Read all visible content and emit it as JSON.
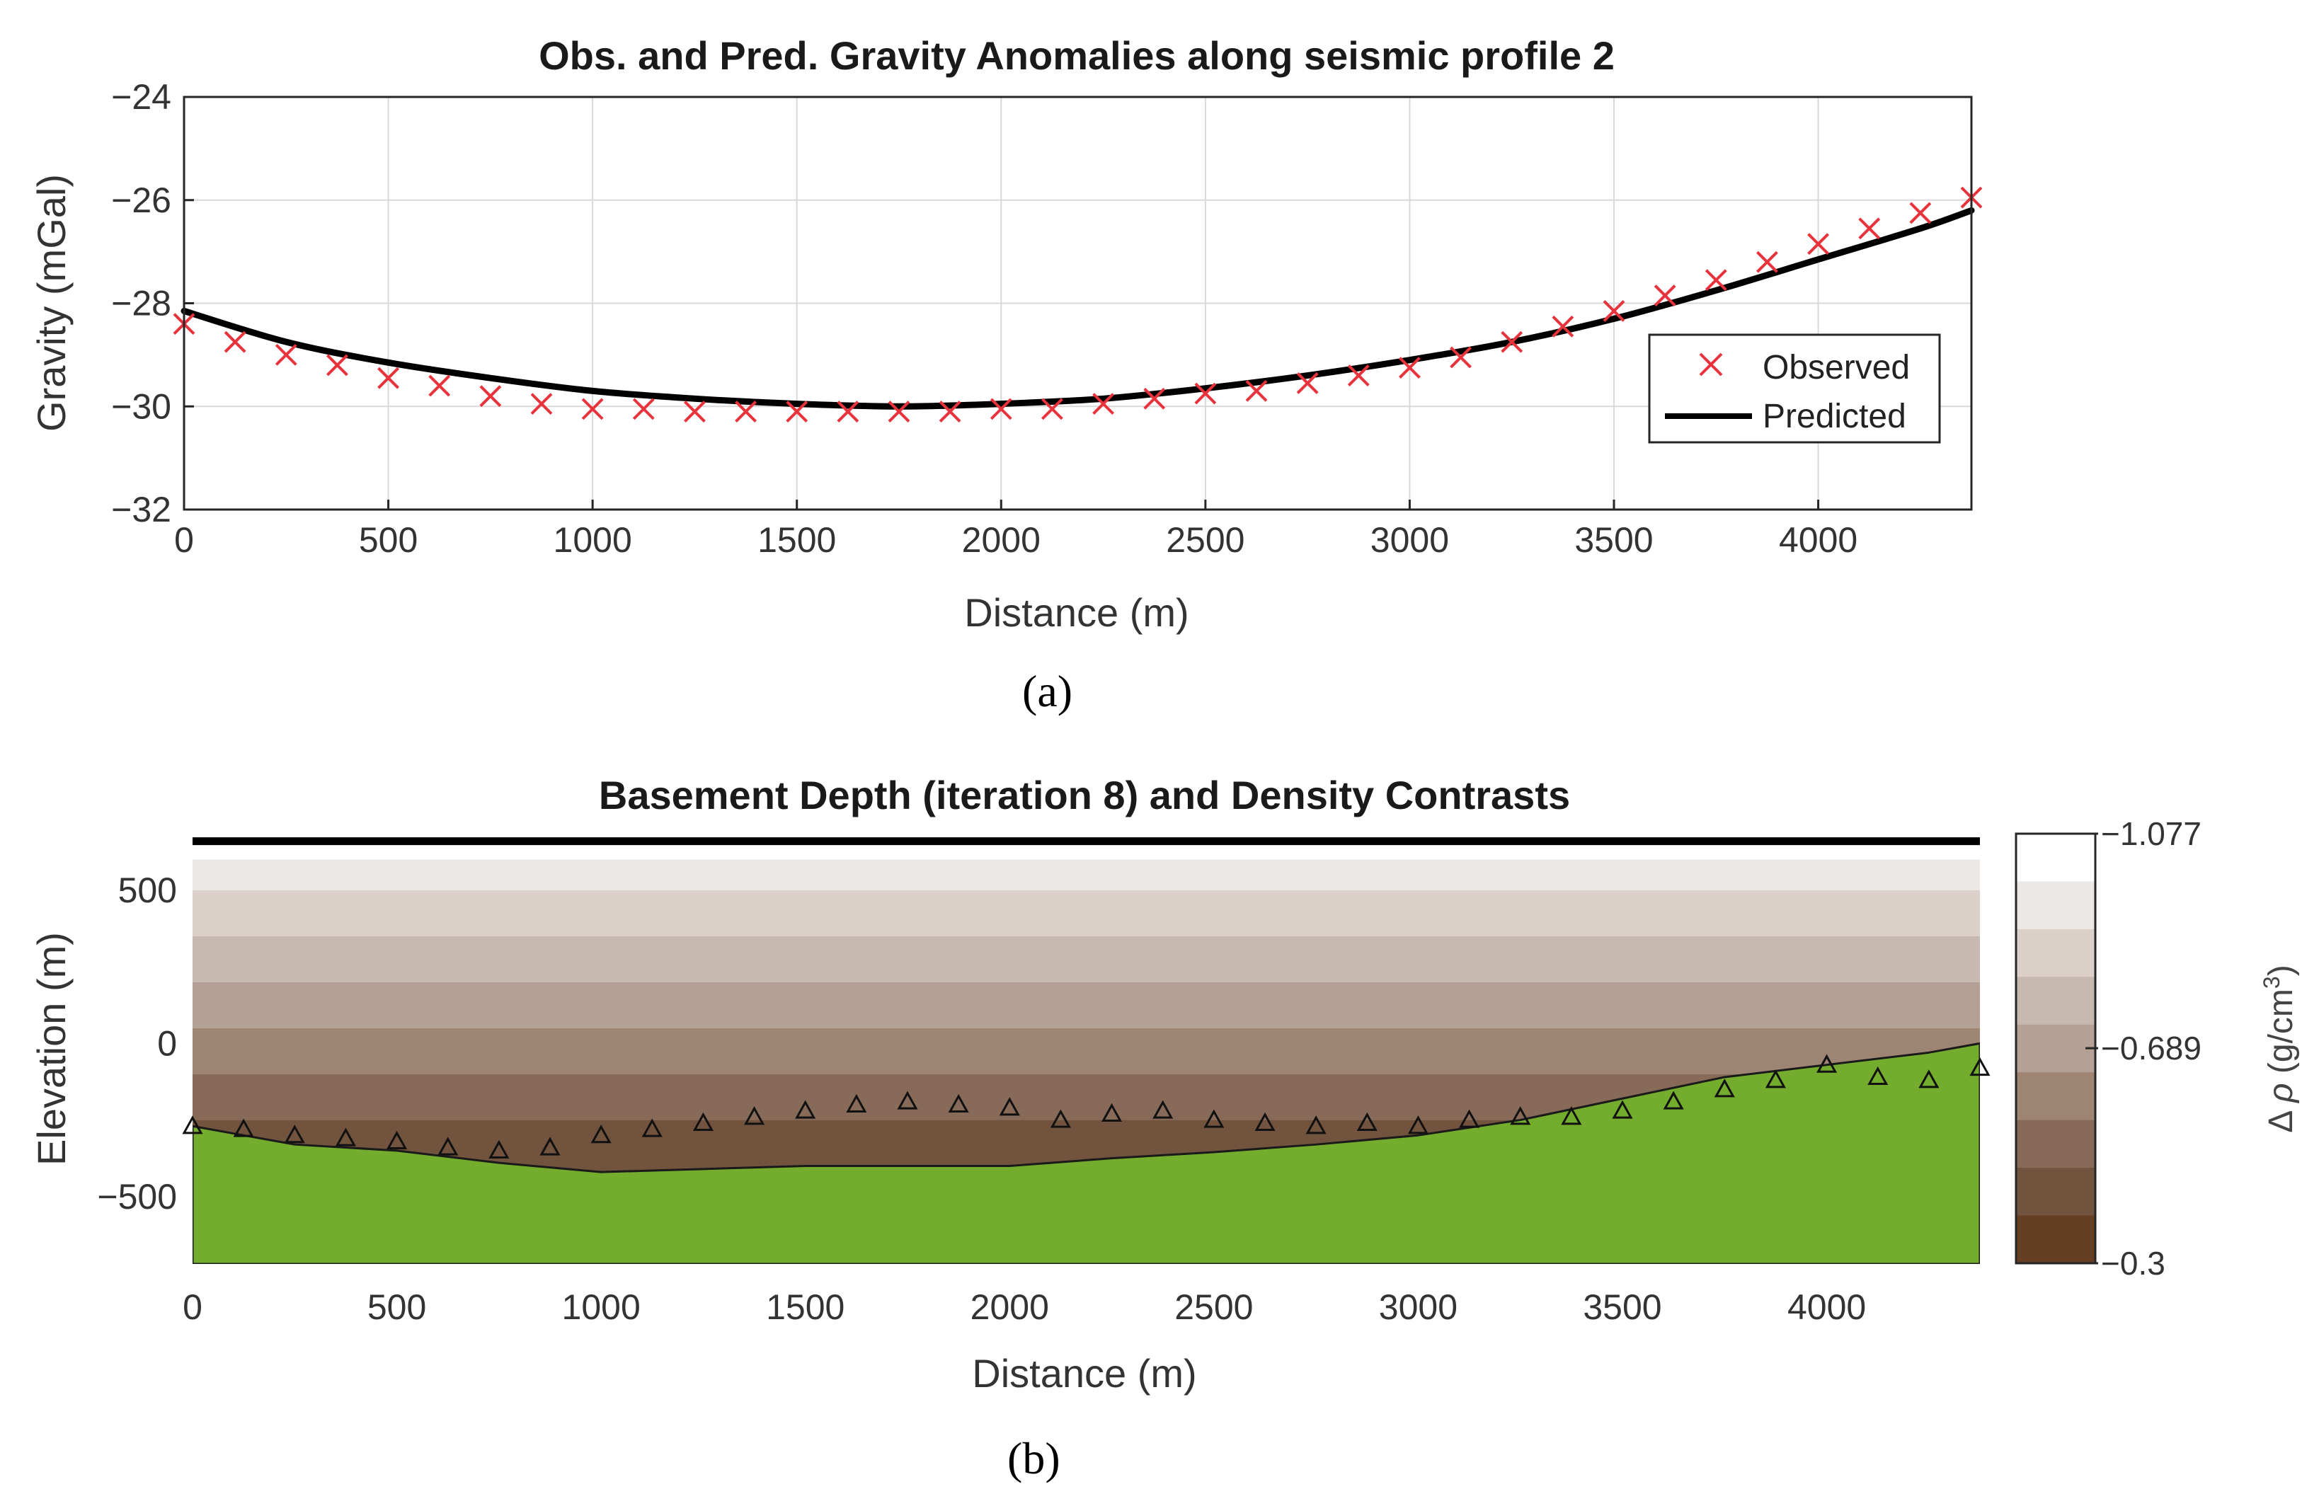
{
  "chart_data": [
    {
      "type": "line",
      "title": "Obs. and Pred. Gravity Anomalies along seismic profile 2",
      "xlabel": "Distance (m)",
      "ylabel": "Gravity (mGal)",
      "xlim": [
        0,
        4375
      ],
      "ylim": [
        -32,
        -24
      ],
      "x_ticks": [
        0,
        500,
        1000,
        1500,
        2000,
        2500,
        3000,
        3500,
        4000
      ],
      "x_tick_labels": [
        "0",
        "500",
        "1000",
        "1500",
        "2000",
        "2500",
        "3000",
        "3500",
        "4000"
      ],
      "y_ticks": [
        -24,
        -26,
        -28,
        -30,
        -32
      ],
      "y_tick_labels": [
        "−24",
        "−26",
        "−28",
        "−30",
        "−32"
      ],
      "grid": true,
      "legend_position": "bottom-right",
      "series": [
        {
          "name": "Observed",
          "marker": "x",
          "color": "#e8323c",
          "x": [
            0,
            125,
            250,
            375,
            500,
            625,
            750,
            875,
            1000,
            1125,
            1250,
            1375,
            1500,
            1625,
            1750,
            1875,
            2000,
            2125,
            2250,
            2375,
            2500,
            2625,
            2750,
            2875,
            3000,
            3125,
            3250,
            3375,
            3500,
            3625,
            3750,
            3875,
            4000,
            4125,
            4250,
            4375
          ],
          "values": [
            -28.4,
            -28.75,
            -29.0,
            -29.2,
            -29.45,
            -29.6,
            -29.8,
            -29.95,
            -30.05,
            -30.05,
            -30.1,
            -30.1,
            -30.1,
            -30.1,
            -30.1,
            -30.1,
            -30.05,
            -30.05,
            -29.95,
            -29.85,
            -29.75,
            -29.7,
            -29.55,
            -29.4,
            -29.25,
            -29.05,
            -28.75,
            -28.45,
            -28.15,
            -27.85,
            -27.55,
            -27.2,
            -26.85,
            -26.55,
            -26.25,
            -25.95
          ]
        },
        {
          "name": "Predicted",
          "marker": "line",
          "color": "#000000",
          "x": [
            0,
            250,
            500,
            750,
            1000,
            1250,
            1500,
            1750,
            2000,
            2250,
            2500,
            2750,
            3000,
            3250,
            3500,
            3750,
            4000,
            4250,
            4375
          ],
          "values": [
            -28.15,
            -28.75,
            -29.15,
            -29.45,
            -29.7,
            -29.85,
            -29.95,
            -30.0,
            -29.95,
            -29.85,
            -29.65,
            -29.4,
            -29.1,
            -28.75,
            -28.3,
            -27.75,
            -27.15,
            -26.55,
            -26.2
          ]
        }
      ],
      "caption": "(a)"
    },
    {
      "type": "area",
      "title": "Basement Depth (iteration 8) and Density Contrasts",
      "xlabel": "Distance (m)",
      "ylabel": "Elevation (m)",
      "xlim": [
        0,
        4375
      ],
      "ylim": [
        -720,
        680
      ],
      "x_ticks": [
        0,
        500,
        1000,
        1500,
        2000,
        2500,
        3000,
        3500,
        4000
      ],
      "x_tick_labels": [
        "0",
        "500",
        "1000",
        "1500",
        "2000",
        "2500",
        "3000",
        "3500",
        "4000"
      ],
      "y_ticks": [
        500,
        0,
        -500
      ],
      "y_tick_labels": [
        "500",
        "0",
        "−500"
      ],
      "top_surface_elevation": 660,
      "basement": {
        "name": "Basement",
        "color": "#74ac2e",
        "x": [
          0,
          250,
          500,
          750,
          1000,
          1250,
          1500,
          1750,
          2000,
          2250,
          2500,
          2750,
          3000,
          3250,
          3500,
          3750,
          4000,
          4250,
          4375
        ],
        "values": [
          -270,
          -330,
          -350,
          -390,
          -420,
          -410,
          -400,
          -400,
          -400,
          -375,
          -355,
          -330,
          -300,
          -250,
          -180,
          -110,
          -70,
          -30,
          0
        ]
      },
      "seismic_basement": {
        "name": "Seismic depth points",
        "marker": "triangle",
        "x": [
          0,
          125,
          250,
          375,
          500,
          625,
          750,
          875,
          1000,
          1125,
          1250,
          1375,
          1500,
          1625,
          1750,
          1875,
          2000,
          2125,
          2250,
          2375,
          2500,
          2625,
          2750,
          2875,
          3000,
          3125,
          3250,
          3375,
          3500,
          3625,
          3750,
          3875,
          4000,
          4125,
          4250,
          4375
        ],
        "values": [
          -270,
          -280,
          -300,
          -310,
          -320,
          -340,
          -350,
          -340,
          -300,
          -280,
          -260,
          -240,
          -220,
          -200,
          -190,
          -200,
          -210,
          -250,
          -230,
          -220,
          -250,
          -260,
          -270,
          -260,
          -270,
          -250,
          -240,
          -240,
          -220,
          -190,
          -150,
          -120,
          -70,
          -110,
          -120,
          -80
        ]
      },
      "density_layers": {
        "boundaries": [
          640,
          600,
          500,
          350,
          200,
          50,
          -100,
          -250
        ],
        "colors": [
          "#ffffff",
          "#ece8e5",
          "#dbd0ca",
          "#c8b9b0",
          "#b4a094",
          "#9e8473",
          "#876b58",
          "#72533d"
        ]
      },
      "colorbar": {
        "label": "Δ ρ (g/cm³)",
        "label_prefix": "Δ",
        "label_rho": "ρ",
        "label_units": "(g/cm",
        "label_sup": "3",
        "label_close": ")",
        "tick_labels": [
          "−1.077",
          "−0.689",
          "−0.3"
        ],
        "tick_values": [
          -1.077,
          -0.689,
          -0.3
        ],
        "colors": [
          "#ffffff",
          "#ece8e5",
          "#dbd0ca",
          "#c8b9b0",
          "#b4a094",
          "#9e8473",
          "#876b58",
          "#72533d",
          "#643f24"
        ]
      },
      "caption": "(b)"
    }
  ]
}
